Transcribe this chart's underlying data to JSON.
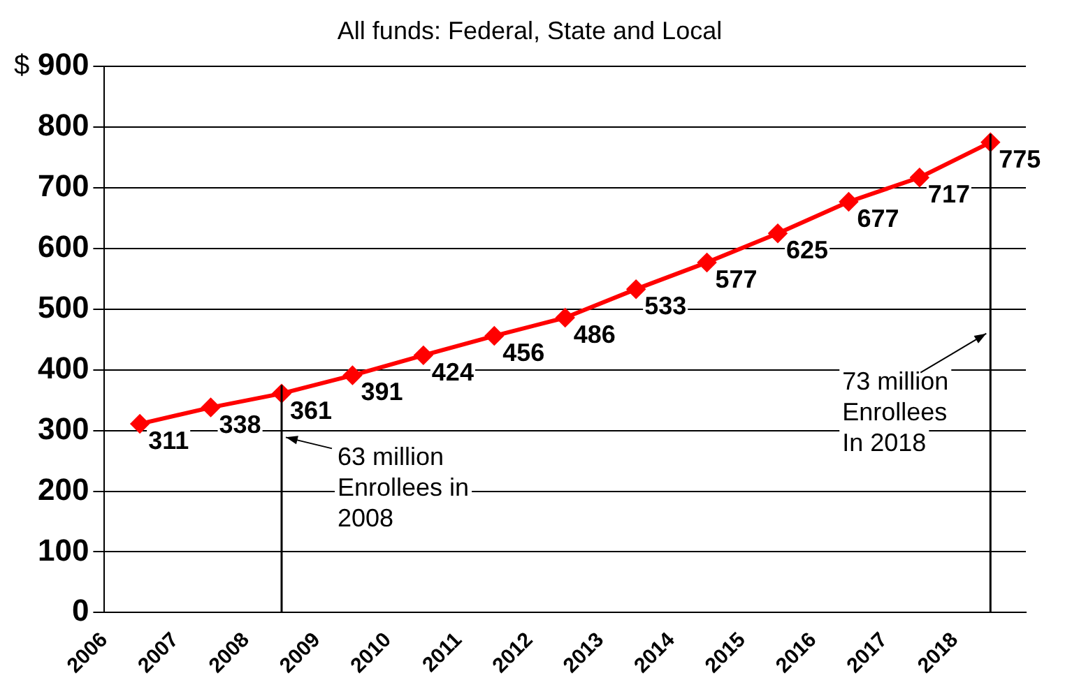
{
  "chart_data": {
    "type": "line",
    "title": "All funds: Federal, State and Local",
    "ylabel": "$",
    "x": [
      2006.5,
      2007.5,
      2008.5,
      2009.5,
      2010.5,
      2011.5,
      2012.5,
      2013.5,
      2014.5,
      2015.5,
      2016.5,
      2017.5,
      2018.5
    ],
    "series": [
      {
        "color": "#ff0000",
        "values": [
          311,
          338,
          361,
          391,
          424,
          456,
          486,
          533,
          577,
          625,
          677,
          717,
          775
        ]
      }
    ],
    "xlim": [
      2006,
      2019
    ],
    "xticks": [
      2006,
      2007,
      2008,
      2009,
      2010,
      2011,
      2012,
      2013,
      2014,
      2015,
      2016,
      2017,
      2018
    ],
    "ylim": [
      0,
      900
    ],
    "yticks": [
      0,
      100,
      200,
      300,
      400,
      500,
      600,
      700,
      800,
      900
    ],
    "grid": "y",
    "marker": "diamond",
    "line_style": "solid",
    "data_labels": true,
    "legend": false,
    "ref_lines": [
      {
        "axis": "x",
        "value": 2008.5,
        "label": "63 million\nEnrollees in\n2008",
        "color": "#000000"
      },
      {
        "axis": "x",
        "value": 2018.5,
        "label": "73 million\nEnrollees\nIn 2018",
        "color": "#000000"
      }
    ]
  }
}
